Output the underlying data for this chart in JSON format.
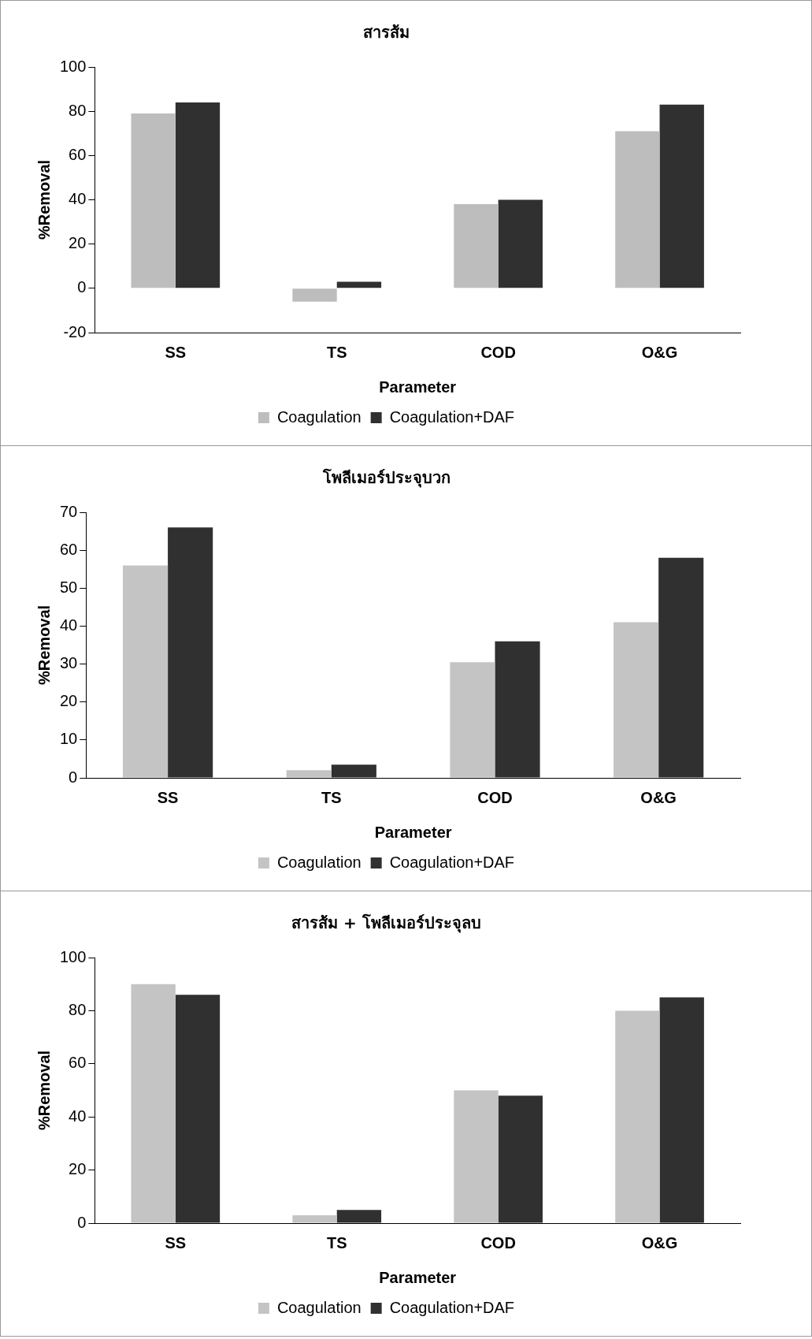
{
  "chart_data": [
    {
      "type": "bar",
      "title": "สารส้ม",
      "xlabel": "Parameter",
      "ylabel": "%Removal",
      "categories": [
        "SS",
        "TS",
        "COD",
        "O&G"
      ],
      "series": [
        {
          "name": "Coagulation",
          "color": "#bdbdbd",
          "values": [
            79,
            -6,
            38,
            71
          ]
        },
        {
          "name": "Coagulation+DAF",
          "color": "#303030",
          "values": [
            84,
            3,
            40,
            83
          ]
        }
      ],
      "ylim": [
        -20,
        100
      ],
      "yticks": [
        -20,
        0,
        20,
        40,
        60,
        80,
        100
      ],
      "grid": false,
      "legend": "bottom"
    },
    {
      "type": "bar",
      "title": "โพลีเมอร์ประจุบวก",
      "xlabel": "Parameter",
      "ylabel": "%Removal",
      "categories": [
        "SS",
        "TS",
        "COD",
        "O&G"
      ],
      "series": [
        {
          "name": "Coagulation",
          "color": "#c4c4c4",
          "values": [
            56,
            2,
            30.5,
            41
          ]
        },
        {
          "name": "Coagulation+DAF",
          "color": "#303030",
          "values": [
            66,
            3.5,
            36,
            58
          ]
        }
      ],
      "ylim": [
        0,
        70
      ],
      "yticks": [
        0,
        10,
        20,
        30,
        40,
        50,
        60,
        70
      ],
      "grid": false,
      "legend": "bottom"
    },
    {
      "type": "bar",
      "title": "สารส้ม + โพลีเมอร์ประจุลบ",
      "xlabel": "Parameter",
      "ylabel": "%Removal",
      "categories": [
        "SS",
        "TS",
        "COD",
        "O&G"
      ],
      "series": [
        {
          "name": "Coagulation",
          "color": "#c4c4c4",
          "values": [
            90,
            3,
            50,
            80
          ]
        },
        {
          "name": "Coagulation+DAF",
          "color": "#303030",
          "values": [
            86,
            5,
            48,
            85
          ]
        }
      ],
      "ylim": [
        0,
        100
      ],
      "yticks": [
        0,
        20,
        40,
        60,
        80,
        100
      ],
      "grid": false,
      "legend": "bottom"
    }
  ]
}
